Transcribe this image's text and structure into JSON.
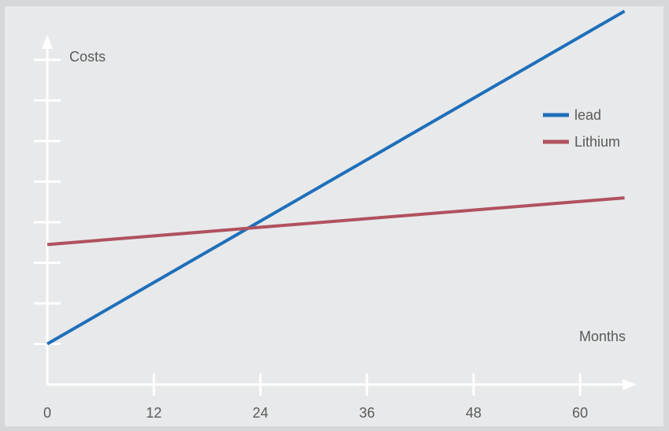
{
  "chart_data": {
    "type": "line",
    "title": "",
    "xlabel": "Months",
    "ylabel": "Costs",
    "x_ticks": [
      0,
      12,
      24,
      36,
      48,
      60
    ],
    "xlim": [
      0,
      65
    ],
    "ylim": [
      0,
      8
    ],
    "y_ticks_labeled": false,
    "grid": false,
    "legend_position": "right",
    "series": [
      {
        "name": "lead",
        "color": "#1e6fba",
        "x": [
          0,
          65
        ],
        "y": [
          1.0,
          9.2
        ]
      },
      {
        "name": "Lithium",
        "color": "#b0515f",
        "x": [
          0,
          65
        ],
        "y": [
          3.45,
          4.6
        ]
      }
    ]
  }
}
